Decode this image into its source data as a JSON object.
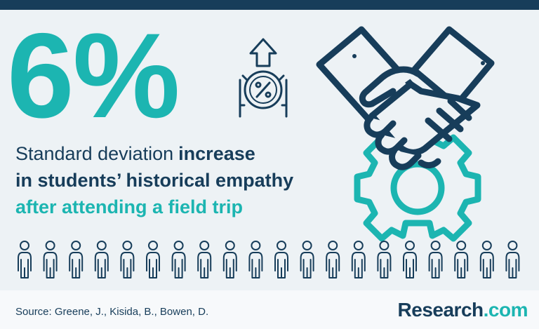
{
  "stat": "6%",
  "statement": {
    "part1": "Standard deviation",
    "part2": "increase",
    "line2": "in students’ historical empathy",
    "line3": "after attending a field trip"
  },
  "source": "Source: Greene, J., Kisida, B., Bowen, D.",
  "brand": {
    "name": "Research",
    "suffix": ".com"
  }
}
